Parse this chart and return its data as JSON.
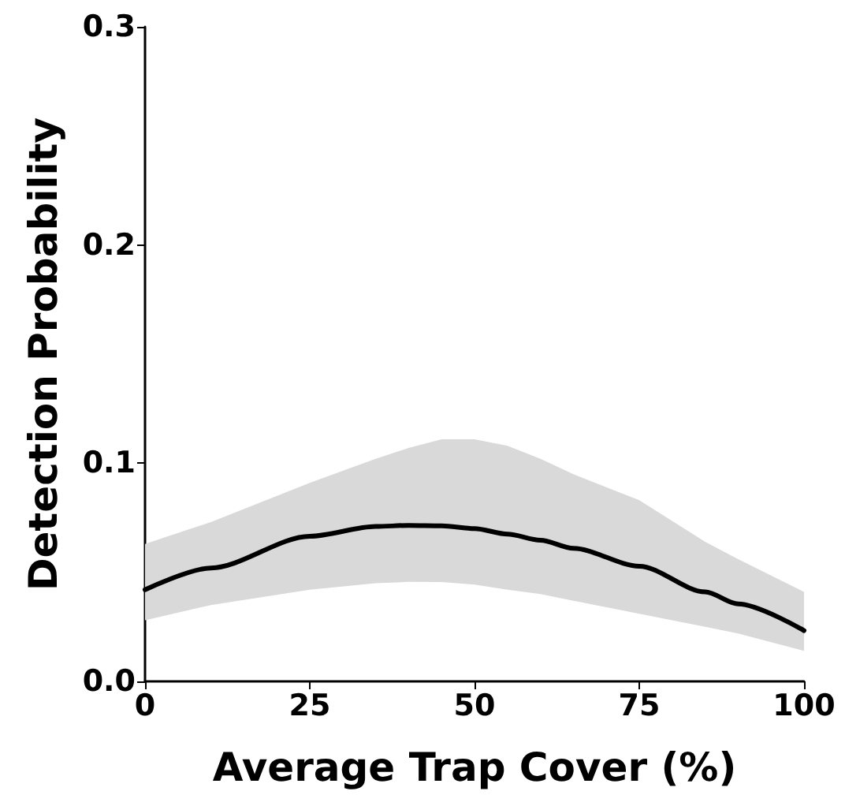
{
  "chart_data": {
    "type": "line",
    "xlabel": "Average Trap Cover (%)",
    "ylabel": "Detection Probability",
    "x": [
      0,
      10,
      25,
      35,
      40,
      45,
      50,
      55,
      60,
      65,
      75,
      85,
      90,
      100
    ],
    "series": [
      {
        "color": "#000000",
        "values": [
          0.042,
          0.052,
          0.0665,
          0.071,
          0.0715,
          0.0713,
          0.07,
          0.0675,
          0.0647,
          0.061,
          0.0528,
          0.041,
          0.0355,
          0.0233
        ],
        "lower": [
          0.028,
          0.035,
          0.042,
          0.045,
          0.0456,
          0.0455,
          0.0444,
          0.042,
          0.04,
          0.037,
          0.031,
          0.025,
          0.022,
          0.014
        ],
        "upper": [
          0.063,
          0.073,
          0.091,
          0.102,
          0.107,
          0.111,
          0.111,
          0.108,
          0.102,
          0.095,
          0.083,
          0.064,
          0.056,
          0.041
        ]
      }
    ],
    "xlim": [
      0,
      100
    ],
    "xticks": [
      0,
      25,
      50,
      75,
      100
    ],
    "ylim": [
      0,
      0.3
    ],
    "yticks": [
      {
        "value": 0,
        "label": "0.0"
      },
      {
        "value": 0.1,
        "label": "0.1"
      },
      {
        "value": 0.2,
        "label": "0.2"
      },
      {
        "value": 0.3,
        "label": "0.3"
      }
    ],
    "grid": false,
    "marker": "none",
    "line_style": "solid"
  }
}
